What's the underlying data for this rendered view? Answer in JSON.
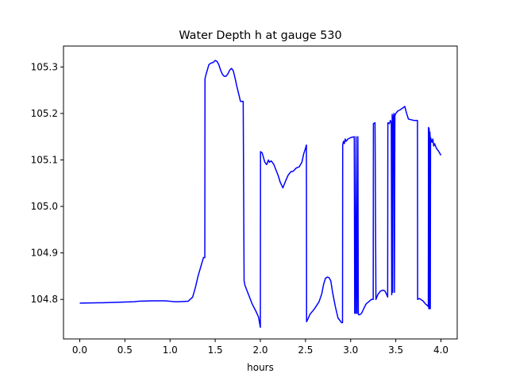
{
  "chart_data": {
    "type": "line",
    "title": "Water Depth h at gauge 530",
    "xlabel": "hours",
    "ylabel": "",
    "xlim": [
      -0.18,
      4.18
    ],
    "ylim": [
      104.715,
      105.345
    ],
    "xticks": [
      0.0,
      0.5,
      1.0,
      1.5,
      2.0,
      2.5,
      3.0,
      3.5,
      4.0
    ],
    "xtick_labels": [
      "0.0",
      "0.5",
      "1.0",
      "1.5",
      "2.0",
      "2.5",
      "3.0",
      "3.5",
      "4.0"
    ],
    "yticks": [
      104.8,
      104.9,
      105.0,
      105.1,
      105.2,
      105.3
    ],
    "ytick_labels": [
      "104.8",
      "104.9",
      "105.0",
      "105.1",
      "105.2",
      "105.3"
    ],
    "grid": false,
    "series": [
      {
        "color": "#0000ff",
        "x": [
          0.0,
          0.3,
          0.6,
          0.65,
          0.8,
          0.95,
          1.0,
          1.05,
          1.1,
          1.2,
          1.25,
          1.28,
          1.31,
          1.34,
          1.37,
          1.385,
          1.387,
          1.4,
          1.43,
          1.45,
          1.48,
          1.5,
          1.52,
          1.54,
          1.56,
          1.58,
          1.6,
          1.62,
          1.64,
          1.66,
          1.68,
          1.7,
          1.72,
          1.74,
          1.76,
          1.78,
          1.81,
          1.82,
          1.83,
          1.87,
          1.91,
          1.95,
          1.98,
          2.0,
          2.002,
          2.02,
          2.05,
          2.07,
          2.09,
          2.1,
          2.12,
          2.15,
          2.18,
          2.2,
          2.22,
          2.25,
          2.28,
          2.31,
          2.34,
          2.36,
          2.4,
          2.43,
          2.46,
          2.48,
          2.5,
          2.51,
          2.512,
          2.52,
          2.55,
          2.6,
          2.65,
          2.68,
          2.7,
          2.72,
          2.74,
          2.76,
          2.78,
          2.8,
          2.83,
          2.86,
          2.9,
          2.91,
          2.912,
          2.92,
          2.93,
          2.94,
          2.95,
          2.97,
          3.0,
          3.04,
          3.045,
          3.05,
          3.06,
          3.065,
          3.07,
          3.08,
          3.085,
          3.09,
          3.1,
          3.12,
          3.14,
          3.17,
          3.2,
          3.23,
          3.25,
          3.252,
          3.27,
          3.28,
          3.29,
          3.3,
          3.33,
          3.36,
          3.38,
          3.4,
          3.41,
          3.412,
          3.43,
          3.44,
          3.45,
          3.455,
          3.46,
          3.465,
          3.47,
          3.475,
          3.48,
          3.485,
          3.49,
          3.5,
          3.52,
          3.55,
          3.58,
          3.6,
          3.62,
          3.64,
          3.66,
          3.7,
          3.73,
          3.74,
          3.742,
          3.76,
          3.8,
          3.83,
          3.86,
          3.862,
          3.865,
          3.868,
          3.87,
          3.875,
          3.878,
          3.88,
          3.882,
          3.885,
          3.9,
          3.91,
          3.92,
          3.93,
          3.95,
          3.97,
          4.0
        ],
        "y": [
          104.792,
          104.793,
          104.795,
          104.796,
          104.797,
          104.797,
          104.796,
          104.795,
          104.795,
          104.796,
          104.805,
          104.825,
          104.85,
          104.87,
          104.89,
          104.89,
          105.275,
          105.285,
          105.305,
          105.308,
          105.31,
          105.314,
          105.312,
          105.305,
          105.293,
          105.284,
          105.28,
          105.28,
          105.285,
          105.293,
          105.297,
          105.292,
          105.276,
          105.258,
          105.242,
          105.226,
          105.226,
          104.84,
          104.83,
          104.81,
          104.79,
          104.775,
          104.762,
          104.74,
          105.118,
          105.115,
          105.095,
          105.09,
          105.1,
          105.095,
          105.098,
          105.09,
          105.075,
          105.065,
          105.052,
          105.04,
          105.055,
          105.068,
          105.075,
          105.075,
          105.083,
          105.085,
          105.095,
          105.113,
          105.125,
          105.132,
          104.752,
          104.755,
          104.768,
          104.78,
          104.795,
          104.812,
          104.832,
          104.845,
          104.848,
          104.847,
          104.84,
          104.815,
          104.785,
          104.76,
          104.75,
          104.75,
          105.132,
          105.14,
          105.135,
          105.145,
          105.14,
          105.145,
          105.148,
          105.15,
          104.77,
          104.77,
          105.15,
          104.77,
          104.77,
          105.15,
          104.768,
          104.767,
          104.767,
          104.77,
          104.778,
          104.79,
          104.795,
          104.8,
          104.8,
          105.178,
          105.18,
          104.8,
          104.805,
          104.81,
          104.818,
          104.82,
          104.818,
          104.81,
          104.805,
          105.18,
          105.178,
          105.185,
          105.18,
          104.81,
          105.198,
          104.815,
          105.19,
          105.195,
          105.2,
          104.815,
          105.195,
          105.2,
          105.205,
          105.208,
          105.212,
          105.215,
          105.2,
          105.188,
          105.187,
          105.185,
          105.185,
          105.185,
          104.8,
          104.802,
          104.797,
          104.79,
          104.785,
          105.17,
          104.78,
          105.168,
          105.165,
          104.78,
          105.16,
          105.15,
          104.78,
          105.148,
          105.138,
          105.145,
          105.13,
          105.135,
          105.125,
          105.12,
          105.11
        ]
      }
    ]
  }
}
